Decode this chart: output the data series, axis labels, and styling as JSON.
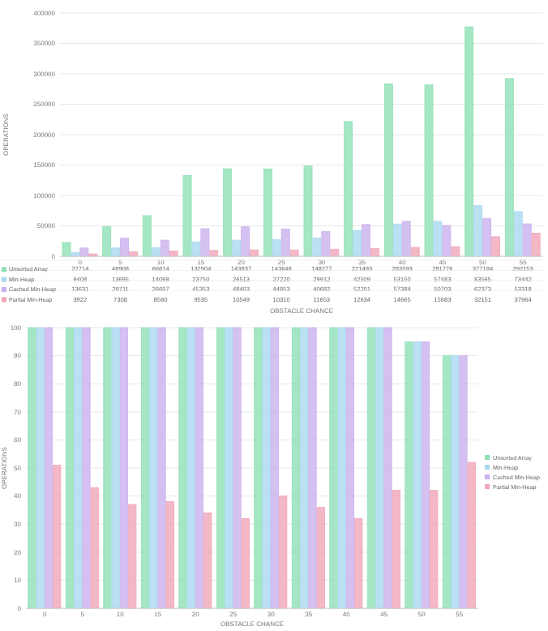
{
  "chart_data": [
    {
      "type": "bar",
      "xlabel": "OBSTACLE CHANCE",
      "ylabel": "OPERATIONS",
      "categories": [
        "0",
        "5",
        "10",
        "15",
        "20",
        "25",
        "30",
        "35",
        "40",
        "45",
        "50",
        "55"
      ],
      "series": [
        {
          "name": "Unsorted Array",
          "color": "#8fe0b5",
          "values": [
            22714,
            48908,
            66814,
            132904,
            143837,
            143648,
            148277,
            221493,
            283593,
            281776,
            377184,
            292153
          ]
        },
        {
          "name": "Min-Heap",
          "color": "#a9d8f0",
          "values": [
            6408,
            13695,
            14068,
            23750,
            26513,
            27220,
            29912,
            42509,
            53150,
            57483,
            83565,
            73442
          ]
        },
        {
          "name": "Cached Min-Heap",
          "color": "#c9b0ee",
          "values": [
            13631,
            29711,
            26607,
            45353,
            48403,
            44853,
            40682,
            52201,
            57384,
            50703,
            62373,
            53318
          ]
        },
        {
          "name": "Partial Min-Heap",
          "color": "#f0a5b8",
          "values": [
            3922,
            7308,
            8560,
            9535,
            10549,
            10310,
            11653,
            12634,
            14665,
            15683,
            32151,
            37964
          ]
        }
      ],
      "ylim": [
        0,
        400000
      ],
      "yticks": [
        0,
        50000,
        100000,
        150000,
        200000,
        250000,
        300000,
        350000,
        400000
      ],
      "grid": "y",
      "legend": "bottom",
      "data_labels": true
    },
    {
      "type": "bar",
      "xlabel": "OBSTACLE CHANCE",
      "ylabel": "OPERATIONS",
      "categories": [
        "0",
        "5",
        "10",
        "15",
        "20",
        "25",
        "30",
        "35",
        "40",
        "45",
        "50",
        "55"
      ],
      "series": [
        {
          "name": "Unsorted Array",
          "color": "#8fe0b5",
          "values": [
            100,
            100,
            100,
            100,
            100,
            100,
            100,
            100,
            100,
            100,
            95,
            90
          ]
        },
        {
          "name": "Min-Heap",
          "color": "#a9d8f0",
          "values": [
            100,
            100,
            100,
            100,
            100,
            100,
            100,
            100,
            100,
            100,
            95,
            90
          ]
        },
        {
          "name": "Cached Min-Heap",
          "color": "#c9b0ee",
          "values": [
            100,
            100,
            100,
            100,
            100,
            100,
            100,
            100,
            100,
            100,
            95,
            90
          ]
        },
        {
          "name": "Partial Min-Heap",
          "color": "#f0a5b8",
          "values": [
            51,
            43,
            37,
            38,
            34,
            32,
            40,
            36,
            32,
            42,
            42,
            52
          ]
        }
      ],
      "ylim": [
        0,
        100
      ],
      "yticks": [
        0,
        10,
        20,
        30,
        40,
        50,
        60,
        70,
        80,
        90,
        100
      ],
      "grid": "y",
      "legend": "right"
    }
  ]
}
